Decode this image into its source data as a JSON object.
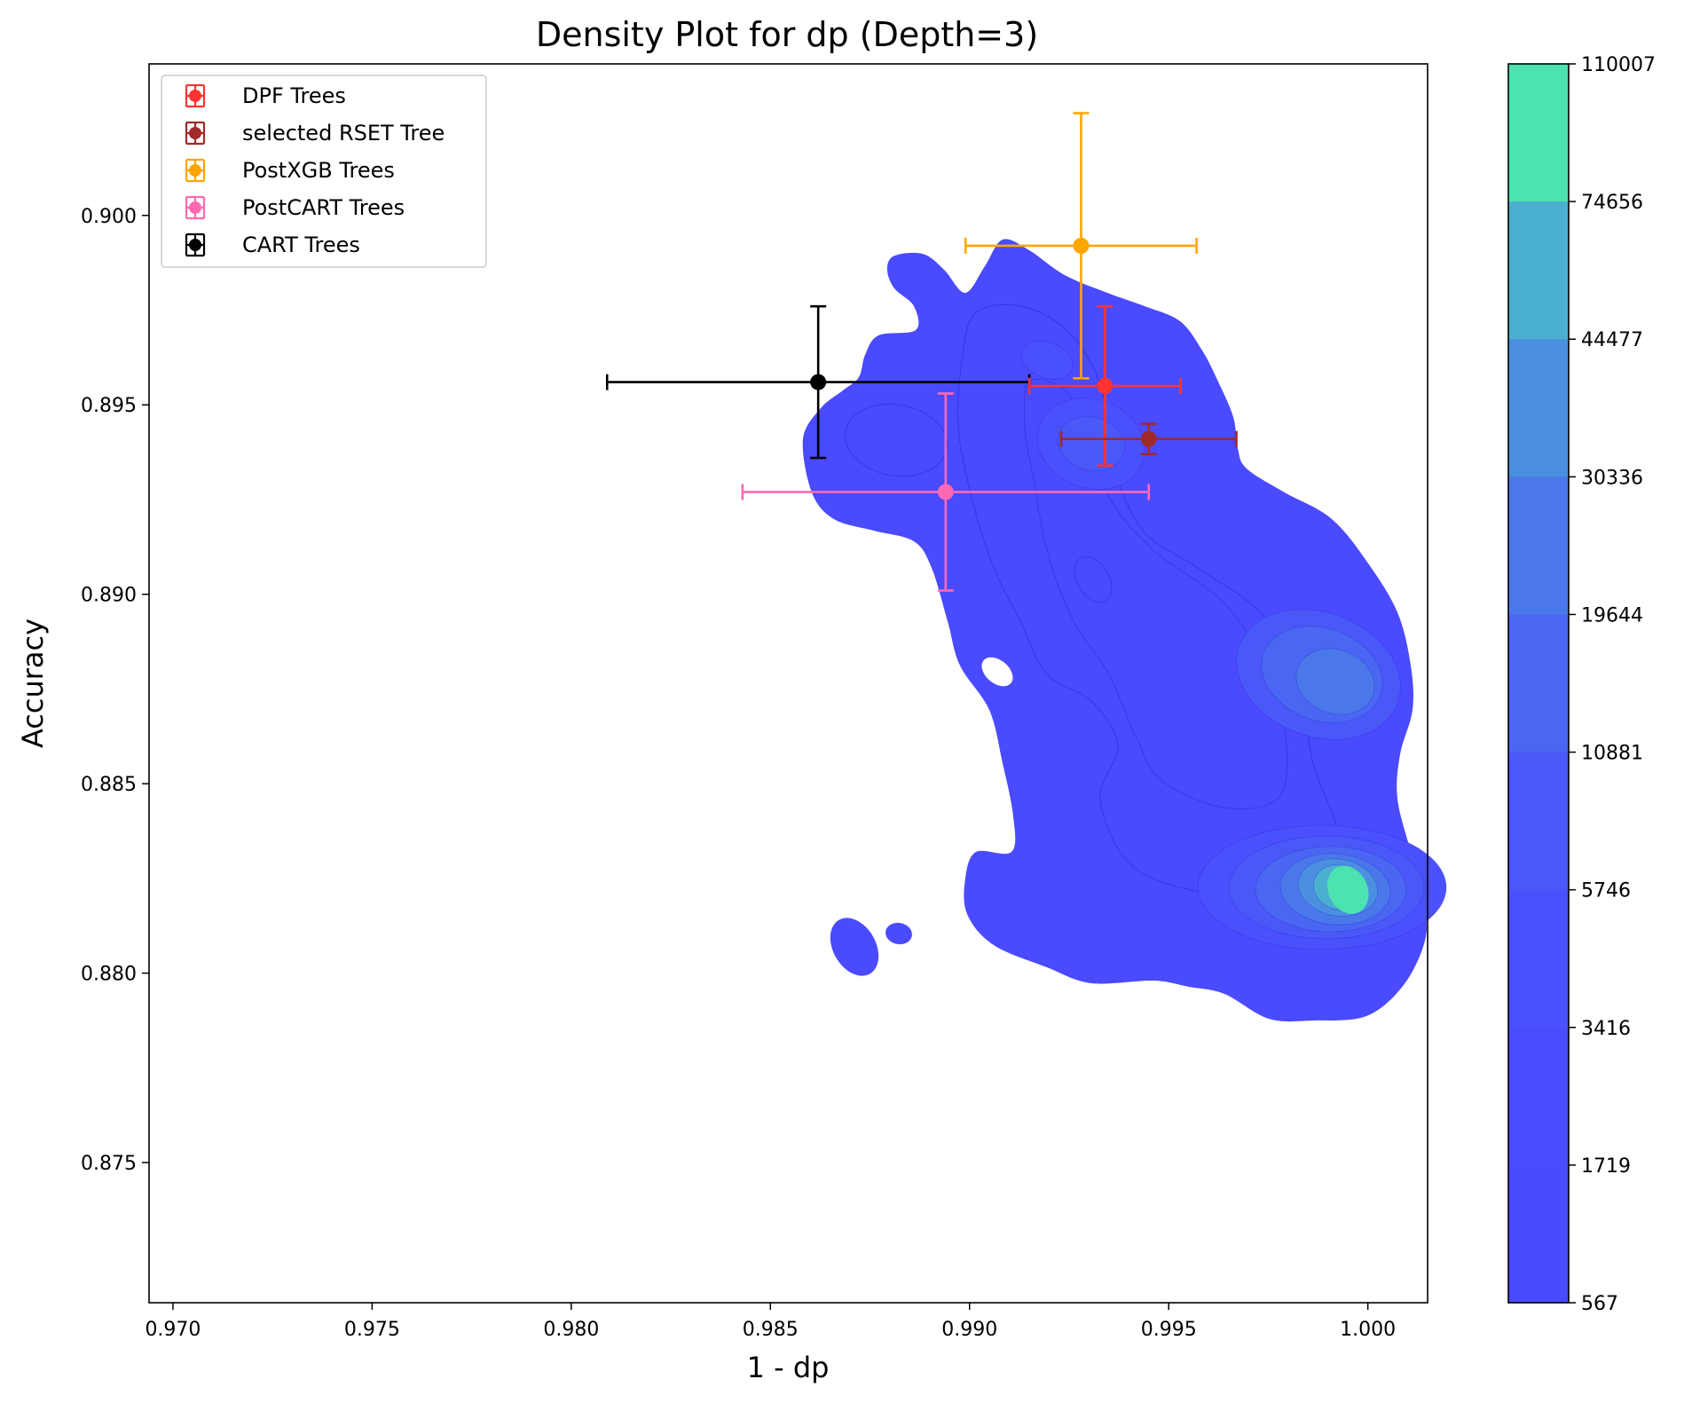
{
  "chart_data": {
    "type": "scatter",
    "title": "Density Plot for dp (Depth=3)",
    "xlabel": "1 - dp",
    "ylabel": "Accuracy",
    "xlim": [
      0.9694,
      1.0015
    ],
    "ylim": [
      0.8713,
      0.904
    ],
    "x_ticks": [
      0.97,
      0.975,
      0.98,
      0.985,
      0.99,
      0.995,
      1.0
    ],
    "x_tick_labels": [
      "0.970",
      "0.975",
      "0.980",
      "0.985",
      "0.990",
      "0.995",
      "1.000"
    ],
    "y_ticks": [
      0.875,
      0.88,
      0.885,
      0.89,
      0.895,
      0.9
    ],
    "y_tick_labels": [
      "0.875",
      "0.880",
      "0.885",
      "0.890",
      "0.895",
      "0.900"
    ],
    "grid": false,
    "legend_position": "top-left",
    "series": [
      {
        "name": "DPF Trees",
        "color": "#ff3333",
        "x": 0.9934,
        "y": 0.8955,
        "xerr": 0.0019,
        "yerr": 0.0021
      },
      {
        "name": "selected RSET Tree",
        "color": "#9e2a2a",
        "x": 0.9945,
        "y": 0.8941,
        "xerr": 0.0022,
        "yerr": 0.0004
      },
      {
        "name": "PostXGB Trees",
        "color": "#ffa500",
        "x": 0.9928,
        "y": 0.8992,
        "xerr": 0.0029,
        "yerr": 0.0035
      },
      {
        "name": "PostCART Trees",
        "color": "#ff69b4",
        "x": 0.9894,
        "y": 0.8927,
        "xerr": 0.0051,
        "yerr": 0.0026
      },
      {
        "name": "CART Trees",
        "color": "#000000",
        "x": 0.9862,
        "y": 0.8956,
        "xerr": 0.0053,
        "yerr": 0.002
      }
    ],
    "density": {
      "type": "kde-contour",
      "base_color": "#4a4aff",
      "peak_color": "#4de3b0",
      "contour_line_color": "#2222cc",
      "peaks": [
        {
          "x": 0.9995,
          "y": 0.8822,
          "level": "max"
        },
        {
          "x": 0.9996,
          "y": 0.8877,
          "level": "high"
        },
        {
          "x": 0.9934,
          "y": 0.8938,
          "level": "medium"
        }
      ]
    },
    "colorbar": {
      "levels": [
        "110007",
        "74656",
        "44477",
        "30336",
        "19644",
        "10881",
        "5746",
        "3416",
        "1719",
        "567"
      ],
      "colors": [
        "#4de3b0",
        "#4bb0d0",
        "#4a8fe0",
        "#4a78ea",
        "#4a66f2",
        "#4a58f8",
        "#4a50fc",
        "#4a4cfe",
        "#4a4aff"
      ]
    }
  }
}
